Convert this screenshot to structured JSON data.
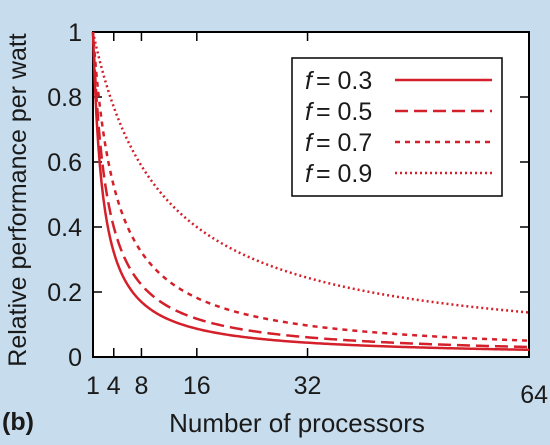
{
  "panel_label": "(b)",
  "chart_data": {
    "type": "line",
    "title": "",
    "xlabel": "Number of processors",
    "ylabel": "Relative performance per watt",
    "xlim": [
      1,
      64
    ],
    "ylim": [
      0,
      1
    ],
    "xticks": [
      1,
      4,
      8,
      16,
      32,
      64
    ],
    "xtick_labels": [
      "1",
      "4",
      "8",
      "16",
      "32",
      "64"
    ],
    "yticks": [
      0,
      0.2,
      0.4,
      0.6,
      0.8,
      1
    ],
    "ytick_labels": [
      "0",
      "0.2",
      "0.4",
      "0.6",
      "0.8",
      "1"
    ],
    "grid": false,
    "legend": "top-right",
    "line_color": "#d4202a",
    "background": "#c7dcec",
    "plot_background": "#ffffff",
    "series": [
      {
        "name": "f = 0.3",
        "symbol": "f",
        "value_text": "= 0.3",
        "f": 0.3,
        "style": "solid"
      },
      {
        "name": "f = 0.5",
        "symbol": "f",
        "value_text": "= 0.5",
        "f": 0.5,
        "style": "dashed"
      },
      {
        "name": "f = 0.7",
        "symbol": "f",
        "value_text": "= 0.7",
        "f": 0.7,
        "style": "dotted"
      },
      {
        "name": "f = 0.9",
        "symbol": "f",
        "value_text": "= 0.9",
        "f": 0.9,
        "style": "dense-dotted"
      }
    ]
  }
}
